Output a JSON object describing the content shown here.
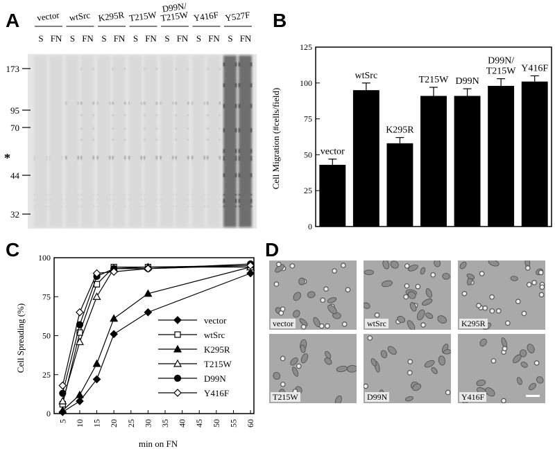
{
  "panels": {
    "a": "A",
    "b": "B",
    "c": "C",
    "d": "D"
  },
  "blot": {
    "groups": [
      "vector",
      "wtSrc",
      "K295R",
      "T215W",
      "D99N/\nT215W",
      "Y416F",
      "Y527F"
    ],
    "lane_labels": [
      "S",
      "FN"
    ],
    "markers": [
      "173",
      "95",
      "70",
      "44",
      "32"
    ],
    "star": "*"
  },
  "chart_data": [
    {
      "type": "bar",
      "ylabel": "Cell Migration (#cells/field)",
      "ylim": [
        0,
        125
      ],
      "yticks": [
        0,
        25,
        50,
        75,
        100,
        125
      ],
      "categories": [
        "vector",
        "wtSrc",
        "K295R",
        "T215W",
        "D99N",
        "D99N/\nT215W",
        "Y416F"
      ],
      "values": [
        43,
        95,
        58,
        91,
        91,
        98,
        101
      ],
      "errors": [
        4,
        5,
        4,
        6,
        5,
        5,
        4
      ]
    },
    {
      "type": "line",
      "ylabel": "Cell Spreading (%)",
      "xlabel": "min on FN",
      "ylim": [
        0,
        100
      ],
      "yticks": [
        0,
        25,
        50,
        75,
        100
      ],
      "xticks": [
        5,
        10,
        15,
        20,
        25,
        30,
        35,
        40,
        45,
        50,
        55,
        60
      ],
      "legend_position": "center-right",
      "series": [
        {
          "name": "vector",
          "marker": "diamond-filled",
          "x": [
            5,
            10,
            15,
            20,
            30,
            60
          ],
          "y": [
            1,
            8,
            22,
            51,
            65,
            90
          ]
        },
        {
          "name": "wtSrc",
          "marker": "square-open",
          "x": [
            5,
            10,
            15,
            20,
            30,
            60
          ],
          "y": [
            6,
            52,
            83,
            94,
            94,
            95
          ]
        },
        {
          "name": "K295R",
          "marker": "triangle-filled",
          "x": [
            5,
            10,
            15,
            20,
            30,
            60
          ],
          "y": [
            2,
            12,
            32,
            61,
            77,
            94
          ]
        },
        {
          "name": "T215W",
          "marker": "triangle-open",
          "x": [
            5,
            10,
            15,
            20,
            30,
            60
          ],
          "y": [
            8,
            46,
            75,
            93,
            94,
            94
          ]
        },
        {
          "name": "D99N",
          "marker": "circle-filled",
          "x": [
            5,
            10,
            15,
            20,
            30,
            60
          ],
          "y": [
            13,
            57,
            88,
            93,
            93,
            96
          ]
        },
        {
          "name": "Y416F",
          "marker": "diamond-open",
          "x": [
            5,
            10,
            15,
            20,
            30,
            60
          ],
          "y": [
            18,
            65,
            90,
            91,
            93,
            95
          ]
        }
      ]
    }
  ],
  "micrographs": [
    "vector",
    "wtSrc",
    "K295R",
    "T215W",
    "D99N",
    "Y416F"
  ]
}
